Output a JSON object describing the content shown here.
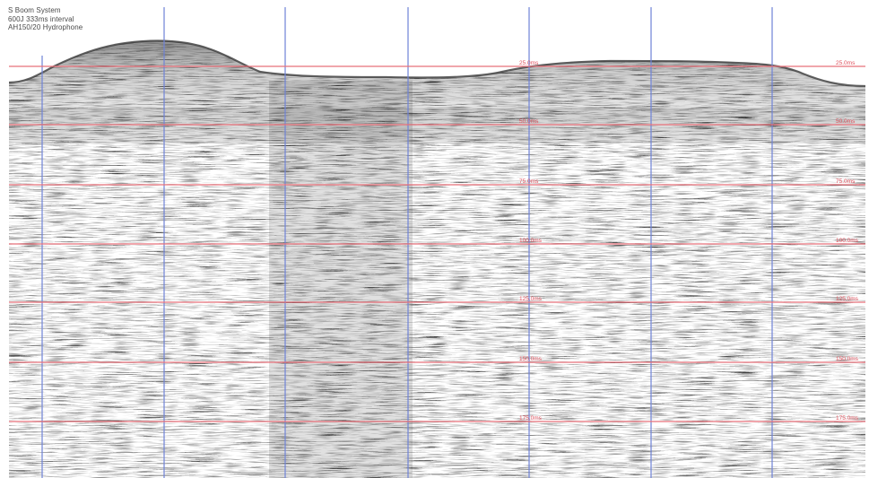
{
  "info": {
    "line1": "S Boom System",
    "line2": "600J 333ms interval",
    "line3": "AH150/20 Hydrophone"
  },
  "depth_labels": [
    "25.0ms",
    "50.0ms",
    "75.0ms",
    "100.0ms",
    "125.0ms",
    "150.0ms",
    "175.0ms"
  ],
  "colors": {
    "depth_line": "#e8707a",
    "depth_label": "#e0505c",
    "trace_marker": "#6f83d8",
    "seabed_top": "#c8886a",
    "background": "#ffffff"
  }
}
